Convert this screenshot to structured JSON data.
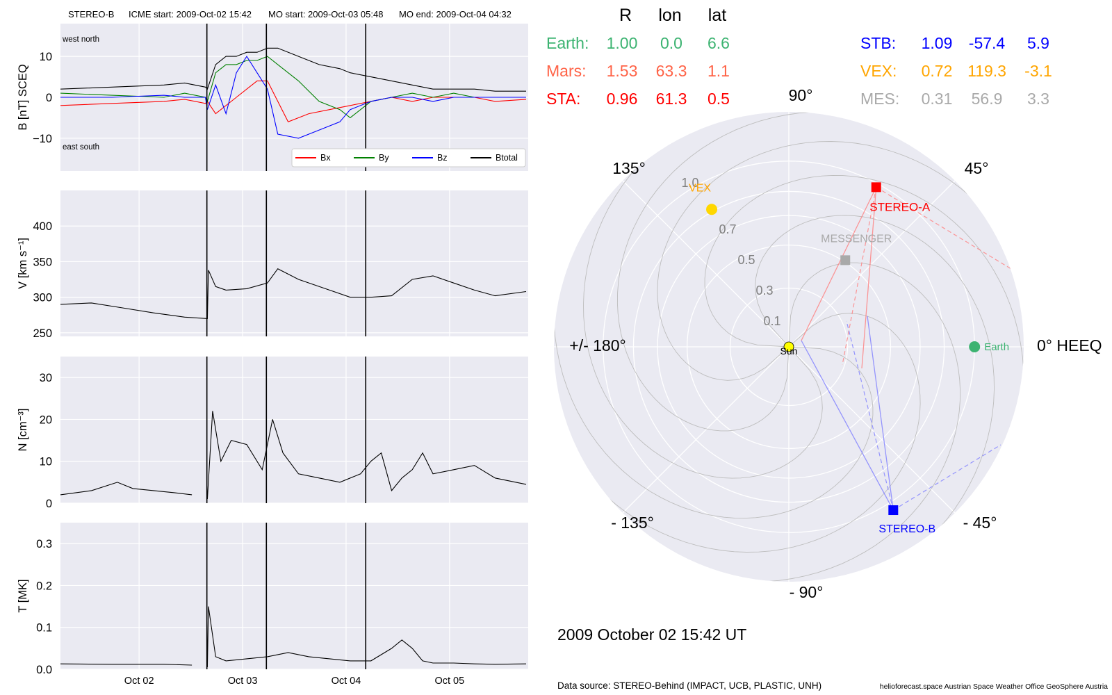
{
  "title": {
    "spacecraft": "STEREO-B",
    "icme_start": "ICME start: 2009-Oct-02 15:42",
    "mo_start": "MO start: 2009-Oct-03 05:48",
    "mo_end": "MO end: 2009-Oct-04 04:32"
  },
  "timeseries": {
    "x_ticks": [
      "Oct 02",
      "Oct 03",
      "Oct 04",
      "Oct 05"
    ],
    "x_range": [
      "2009-10-01T05:42",
      "2009-10-05T18:00"
    ],
    "event_lines": [
      "2009-10-02T15:42",
      "2009-10-03T05:48",
      "2009-10-04T04:32"
    ]
  },
  "chart_data": [
    {
      "type": "line",
      "name": "magnetic-field",
      "ylabel": "B [nT] SCEQ",
      "ylim": [
        -18,
        18
      ],
      "yticks": [
        "10",
        "0",
        "−10"
      ],
      "annotations": {
        "top_left": "west    north",
        "bottom_left": "east    south"
      },
      "legend": {
        "placement": "bottom-right"
      },
      "series": [
        {
          "name": "Bx",
          "color": "#ff0000",
          "x": [
            0.0,
            0.5,
            1.0,
            1.2,
            1.4,
            1.42,
            1.5,
            1.7,
            1.9,
            2.0,
            2.2,
            2.4,
            2.6,
            2.8,
            3.0,
            3.2,
            3.4,
            3.6,
            3.8,
            4.0,
            4.2,
            4.5
          ],
          "y": [
            -2,
            -1.5,
            -1,
            -0.5,
            -1.5,
            -1,
            -4,
            0,
            4,
            4,
            -6,
            -4,
            -3,
            -2,
            -1,
            0,
            -1,
            0,
            0,
            0,
            -1,
            -0.5
          ]
        },
        {
          "name": "By",
          "color": "#008000",
          "x": [
            0.0,
            0.5,
            1.0,
            1.2,
            1.4,
            1.42,
            1.5,
            1.6,
            1.7,
            1.8,
            1.9,
            2.0,
            2.1,
            2.3,
            2.5,
            2.7,
            2.8,
            3.0,
            3.2,
            3.4,
            3.6,
            3.8,
            4.0,
            4.2,
            4.5
          ],
          "y": [
            1,
            0.5,
            0,
            1,
            0,
            -1,
            6,
            8,
            8,
            9,
            9,
            10,
            8,
            4,
            -1,
            -3,
            -5,
            -1,
            0,
            1,
            0,
            1,
            0,
            0,
            0
          ]
        },
        {
          "name": "Bz",
          "color": "#0000ff",
          "x": [
            0.0,
            0.5,
            1.0,
            1.2,
            1.4,
            1.42,
            1.5,
            1.6,
            1.7,
            1.8,
            1.9,
            2.0,
            2.1,
            2.3,
            2.5,
            2.7,
            2.8,
            3.0,
            3.2,
            3.4,
            3.6,
            3.8,
            4.0,
            4.2,
            4.5
          ],
          "y": [
            0,
            0,
            0.5,
            0,
            0,
            -3,
            3,
            -4,
            6,
            10,
            6,
            2,
            -9,
            -10,
            -8,
            -6,
            -3,
            -1,
            0,
            0,
            -1,
            0,
            0,
            0,
            0
          ]
        },
        {
          "name": "Btotal",
          "color": "#000000",
          "x": [
            0.0,
            0.5,
            1.0,
            1.2,
            1.4,
            1.42,
            1.5,
            1.6,
            1.7,
            1.8,
            1.9,
            2.0,
            2.1,
            2.3,
            2.5,
            2.7,
            2.8,
            3.0,
            3.2,
            3.4,
            3.6,
            3.8,
            4.0,
            4.2,
            4.5
          ],
          "y": [
            2,
            2.5,
            3,
            3.5,
            2.5,
            2,
            8,
            10,
            10,
            11,
            11,
            12,
            12,
            10,
            8,
            7,
            6,
            5,
            4,
            3,
            2,
            2,
            2,
            1.5,
            1.5
          ]
        }
      ]
    },
    {
      "type": "line",
      "name": "speed",
      "ylabel": "V [km s⁻¹]",
      "ylim": [
        245,
        450
      ],
      "yticks": [
        "400",
        "350",
        "300",
        "250"
      ],
      "series": [
        {
          "color": "#000000",
          "x": [
            0.0,
            0.3,
            0.6,
            0.9,
            1.2,
            1.42,
            1.43,
            1.5,
            1.6,
            1.8,
            2.0,
            2.1,
            2.3,
            2.6,
            2.8,
            3.0,
            3.2,
            3.4,
            3.6,
            3.8,
            4.0,
            4.2,
            4.5
          ],
          "y": [
            290,
            292,
            285,
            278,
            272,
            270,
            338,
            315,
            310,
            312,
            320,
            340,
            325,
            310,
            300,
            300,
            302,
            325,
            330,
            320,
            310,
            302,
            308
          ]
        }
      ]
    },
    {
      "type": "line",
      "name": "density",
      "ylabel": "N [cm⁻³]",
      "ylim": [
        0,
        35
      ],
      "yticks": [
        "30",
        "20",
        "10",
        "0"
      ],
      "series": [
        {
          "color": "#000000",
          "x": [
            0.0,
            0.3,
            0.55,
            0.7,
            0.9,
            1.1,
            1.27
          ],
          "y": [
            2,
            3,
            5,
            3.5,
            3,
            2.5,
            2
          ]
        },
        {
          "color": "#000000",
          "x": [
            1.42,
            1.47,
            1.55,
            1.65,
            1.8,
            1.95,
            2.05,
            2.15,
            2.3,
            2.5,
            2.7,
            2.9,
            3.0,
            3.1,
            3.2,
            3.3,
            3.4,
            3.5,
            3.6,
            3.8,
            4.0,
            4.2,
            4.5
          ],
          "y": [
            1,
            22,
            10,
            15,
            14,
            8,
            20,
            12,
            7,
            6,
            5,
            7,
            10,
            12,
            3,
            6,
            8,
            12,
            7,
            8,
            9,
            6,
            4.5
          ]
        }
      ]
    },
    {
      "type": "line",
      "name": "temperature",
      "ylabel": "T [MK]",
      "ylim": [
        0,
        0.35
      ],
      "yticks": [
        "0.3",
        "0.2",
        "0.1",
        "0.0"
      ],
      "series": [
        {
          "color": "#000000",
          "x": [
            0.0,
            0.5,
            1.0,
            1.27
          ],
          "y": [
            0.013,
            0.012,
            0.012,
            0.01
          ]
        },
        {
          "color": "#000000",
          "x": [
            1.42,
            1.43,
            1.5,
            1.6,
            1.8,
            2.0,
            2.2,
            2.4,
            2.6,
            2.8,
            3.0,
            3.2,
            3.3,
            3.4,
            3.5,
            3.6,
            3.8,
            4.0,
            4.2,
            4.5
          ],
          "y": [
            0.005,
            0.15,
            0.03,
            0.02,
            0.025,
            0.03,
            0.04,
            0.03,
            0.025,
            0.02,
            0.02,
            0.05,
            0.07,
            0.05,
            0.02,
            0.015,
            0.015,
            0.013,
            0.012,
            0.013
          ]
        }
      ]
    },
    {
      "type": "scatter",
      "name": "polar-position-plot",
      "r_ticks": [
        "0.1",
        "0.3",
        "0.5",
        "0.7",
        "1.0"
      ],
      "r_values": [
        0.1,
        0.3,
        0.5,
        0.7,
        1.0
      ],
      "angle_labels": [
        {
          "deg": 90,
          "label": "90°"
        },
        {
          "deg": 45,
          "label": "45°"
        },
        {
          "deg": 0,
          "label": "0° HEEQ"
        },
        {
          "deg": -45,
          "label": "- 45°"
        },
        {
          "deg": -90,
          "label": "- 90°"
        },
        {
          "deg": -135,
          "label": "- 135°"
        },
        {
          "deg": 180,
          "label": "+/- 180°"
        },
        {
          "deg": 135,
          "label": "135°"
        }
      ],
      "bodies": [
        {
          "label": "Sun",
          "r": 0.0,
          "lon": 0,
          "color": "#ffff00",
          "marker": "circle",
          "label_color": "#000000"
        },
        {
          "label": "Earth",
          "r": 1.0,
          "lon": 0.0,
          "color": "#3cb371",
          "marker": "circle",
          "label_color": "#3cb371"
        },
        {
          "label": "STEREO-A",
          "r": 0.96,
          "lon": 61.3,
          "color": "#ff0000",
          "marker": "square",
          "label_color": "#ff0000"
        },
        {
          "label": "STEREO-B",
          "r": 1.09,
          "lon": -57.4,
          "color": "#0000ff",
          "marker": "square",
          "label_color": "#0000ff"
        },
        {
          "label": "VEX",
          "r": 0.72,
          "lon": 119.3,
          "color": "#ffd700",
          "marker": "circle",
          "label_color": "#ffa500"
        },
        {
          "label": "MESSENGER",
          "r": 0.31,
          "lon": 56.9,
          "color": "#a9a9a9",
          "marker": "square",
          "label_color": "#a9a9a9"
        }
      ]
    }
  ],
  "positions_table": {
    "headers": [
      "R",
      "lon",
      "lat"
    ],
    "left": [
      {
        "name": "Earth:",
        "R": "1.00",
        "lon": "0.0",
        "lat": "6.6",
        "color": "#3cb371"
      },
      {
        "name": "Mars:",
        "R": "1.53",
        "lon": "63.3",
        "lat": "1.1",
        "color": "#ff6347"
      },
      {
        "name": "STA:",
        "R": "0.96",
        "lon": "61.3",
        "lat": "0.5",
        "color": "#ff0000"
      }
    ],
    "right": [
      {
        "name": "STB:",
        "R": "1.09",
        "lon": "-57.4",
        "lat": "5.9",
        "color": "#0000ff"
      },
      {
        "name": "VEX:",
        "R": "0.72",
        "lon": "119.3",
        "lat": "-3.1",
        "color": "#ffa500"
      },
      {
        "name": "MES:",
        "R": "0.31",
        "lon": "56.9",
        "lat": "3.3",
        "color": "#a9a9a9"
      }
    ]
  },
  "timestamp": "2009 October 02  15:42 UT",
  "footer": {
    "source": "Data source: STEREO-Behind (IMPACT, UCB, PLASTIC, UNH)",
    "credits": "helioforecast.space   Austrian Space Weather Office   GeoSphere Austria"
  }
}
